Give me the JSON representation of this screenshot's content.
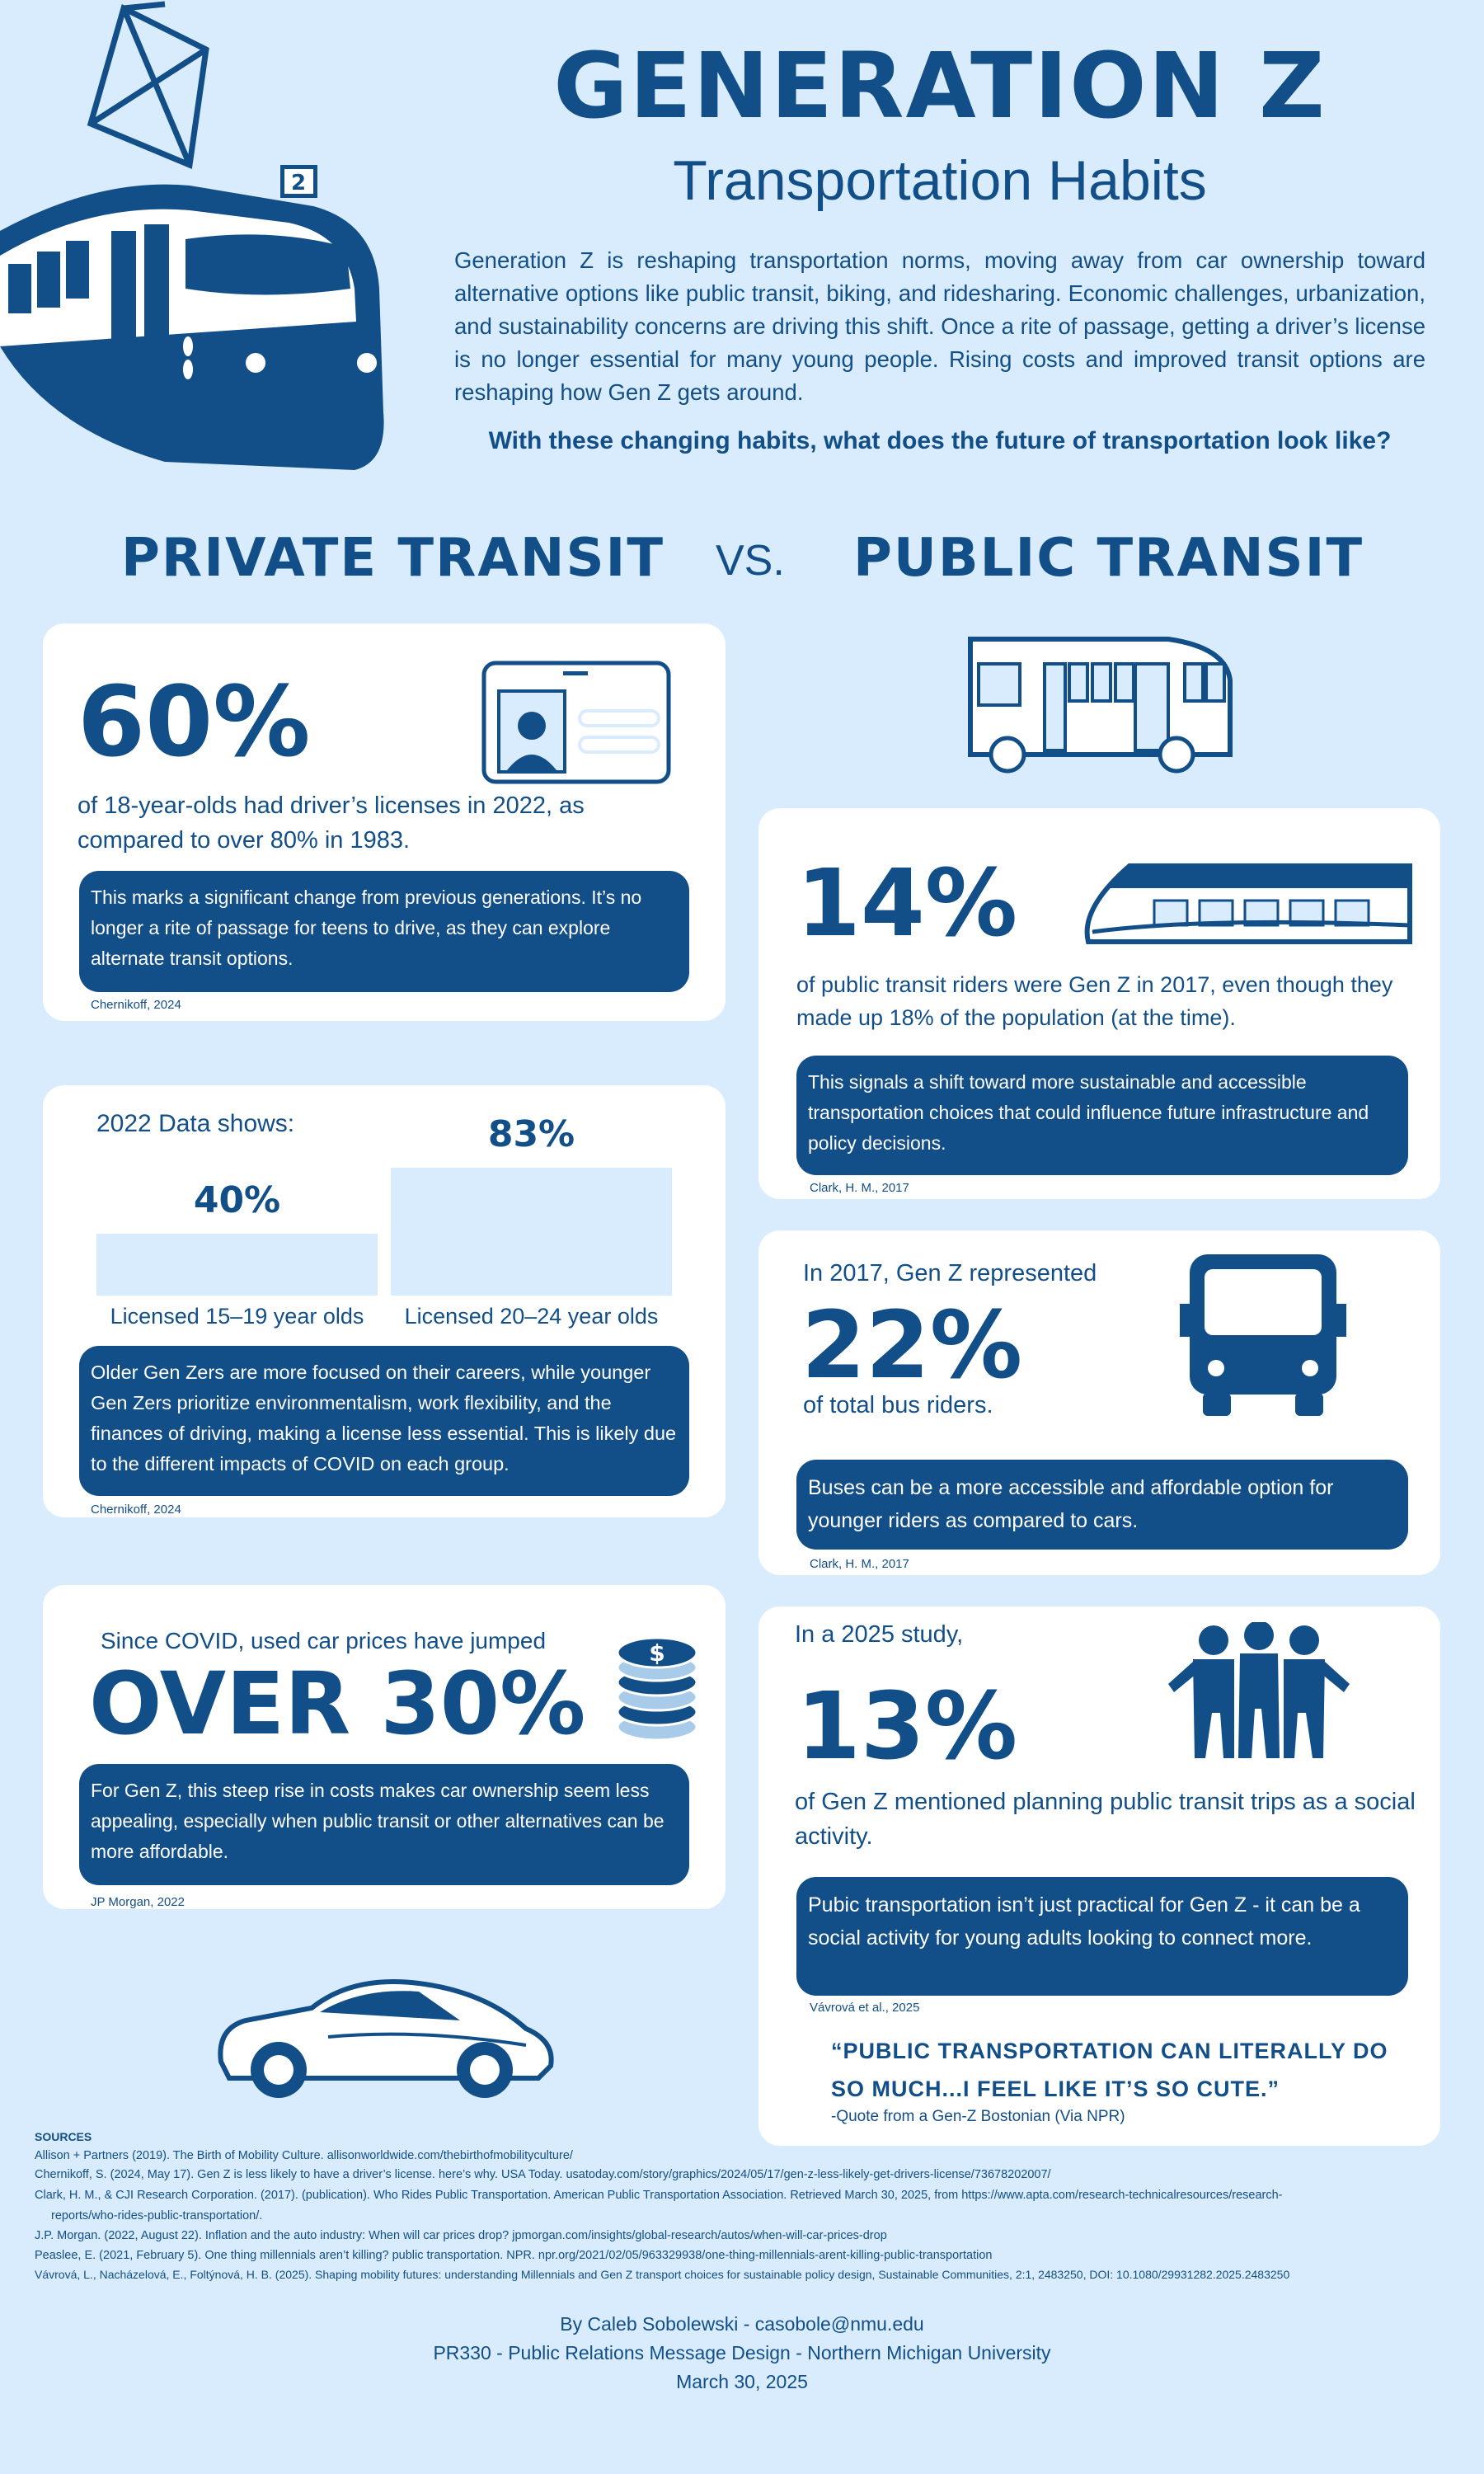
{
  "header": {
    "title": "GENERATION Z",
    "subtitle": "Transportation Habits",
    "tram_number": "2",
    "intro": "Generation Z is reshaping transportation norms, moving away from car ownership toward alternative options like public transit, biking, and ridesharing. Economic challenges, urbanization, and sustainability concerns are driving this shift. Once a rite of passage, getting a driver’s license is no longer essential for many young people. Rising costs and improved transit options are reshaping how Gen Z gets around.",
    "question": "With these changing habits, what does the future of transportation look like?"
  },
  "sections": {
    "private": "PRIVATE TRANSIT",
    "vs": "VS.",
    "public": "PUBLIC TRANSIT"
  },
  "private": {
    "card1": {
      "stat": "60%",
      "text": "of 18-year-olds had driver’s licenses in 2022, as compared to over 80% in 1983.",
      "note": "This marks a significant change from previous generations. It’s no longer a rite of passage for teens to drive, as they can explore alternate transit options.",
      "cite": "Chernikoff, 2024",
      "icon": "id-card-icon"
    },
    "card2": {
      "heading": "2022 Data shows:",
      "note": "Older Gen Zers are more focused on their careers, while younger Gen Zers prioritize environmentalism, work flexibility, and the finances of driving, making a license less essential. This is likely due to the different impacts of COVID on each group.",
      "cite": "Chernikoff, 2024"
    },
    "card3": {
      "lead": "Since COVID, used car prices have jumped",
      "stat": "OVER 30%",
      "note": "For Gen Z, this steep rise in costs makes car ownership seem less appealing, especially when public transit or other alternatives can be more affordable.",
      "cite": "JP Morgan, 2022",
      "icon": "coins-icon"
    }
  },
  "chart_data": {
    "type": "bar",
    "categories": [
      "Licensed 15–19 year olds",
      "Licensed 20–24 year olds"
    ],
    "values": [
      40,
      83
    ],
    "labels": [
      "40%",
      "83%"
    ],
    "ylim": [
      0,
      100
    ]
  },
  "public": {
    "card1": {
      "stat": "14%",
      "text": "of public transit riders were Gen Z in 2017, even though they made up 18% of the population (at the time).",
      "note": "This signals a shift toward more sustainable and accessible transportation choices that could influence future infrastructure and policy decisions.",
      "cite": "Clark, H. M., 2017",
      "icon": "train-icon"
    },
    "card2": {
      "lead": "In 2017, Gen Z represented",
      "stat": "22%",
      "text": "of total bus riders.",
      "note": "Buses can be a more accessible and affordable option for younger riders as compared to cars.",
      "cite": "Clark, H. M., 2017",
      "icon": "bus-front-icon"
    },
    "card3": {
      "lead": "In a 2025 study,",
      "stat": "13%",
      "text": "of Gen Z mentioned planning public transit trips as a social activity.",
      "note": "Pubic transportation isn’t just practical for Gen Z - it can be  a social activity for young adults looking to connect more.",
      "cite": "Vávrová et al., 2025",
      "quote": "“PUBLIC TRANSPORTATION CAN LITERALLY DO SO MUCH...I FEEL LIKE IT’S SO CUTE.”",
      "attribution": "-Quote from a Gen-Z Bostonian (Via NPR)",
      "icon": "people-group-icon"
    }
  },
  "sources": {
    "heading": "SOURCES",
    "items": [
      "Allison + Partners (2019). The Birth of Mobility Culture. allisonworldwide.com/thebirthofmobilityculture/",
      "Chernikoff, S. (2024, May 17). Gen Z is less likely to have a driver’s license. here’s why. USA Today. usatoday.com/story/graphics/2024/05/17/gen-z-less-likely-get-drivers-license/73678202007/",
      "Clark, H. M., & CJI Research Corporation. (2017). (publication). Who Rides Public Transportation. American Public Transportation Association. Retrieved March 30, 2025, from https://www.apta.com/research-technicalresources/research-reports/who-rides-public-transportation/.",
      "J.P. Morgan. (2022, August 22). Inflation and the auto industry: When will car prices drop? jpmorgan.com/insights/global-research/autos/when-will-car-prices-drop",
      "Peaslee, E. (2021, February 5). One thing millennials aren’t killing? public transportation. NPR. npr.org/2021/02/05/963329938/one-thing-millennials-arent-killing-public-transportation",
      "Vávrová, L., Nacházelová, E., Foltýnová, H. B. (2025). Shaping mobility futures: understanding Millennials and Gen Z transport choices for sustainable policy design, Sustainable Communities, 2:1, 2483250, DOI: 10.1080/29931282.2025.2483250"
    ]
  },
  "footer": {
    "author": "By Caleb Sobolewski - casobole@nmu.edu",
    "course": "PR330 - Public Relations Message Design - Northern Michigan University",
    "date": "March 30, 2025"
  },
  "colors": {
    "background": "#d8ecfd",
    "primary": "#124e87",
    "card": "#ffffff"
  }
}
